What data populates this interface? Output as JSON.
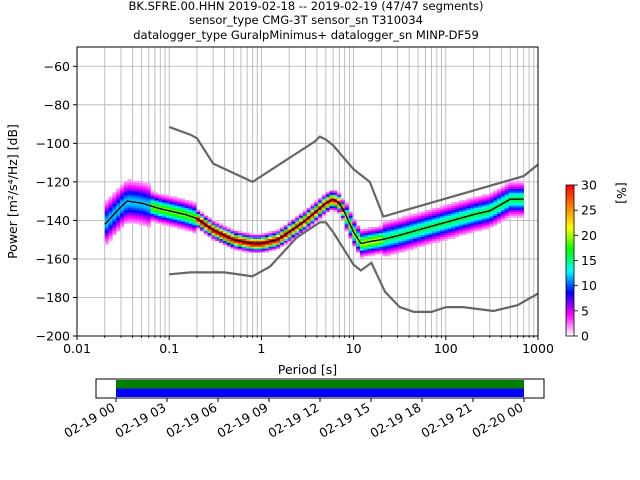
{
  "title_lines": [
    "BK.SFRE.00.HHN   2019-02-18 -- 2019-02-19  (47/47 segments)",
    "sensor_type CMG-3T sensor_sn T310034",
    "datalogger_type GuralpMinimus+ datalogger_sn MINP-DF59"
  ],
  "chart_data": [
    {
      "type": "heatmap",
      "xlabel": "Period [s]",
      "ylabel": "Power [m²/s⁴/Hz] [dB]",
      "xscale": "log",
      "xlim": [
        0.01,
        1000
      ],
      "ylim": [
        -200,
        -50
      ],
      "xtick_labels": [
        "0.01",
        "0.1",
        "1",
        "10",
        "100",
        "1000"
      ],
      "xtick_values": [
        0.01,
        0.1,
        1,
        10,
        100,
        1000
      ],
      "ytick_values": [
        -60,
        -80,
        -100,
        -120,
        -140,
        -160,
        -180,
        -200
      ],
      "grid": true,
      "colorbar": {
        "label": "[%]",
        "range": [
          0,
          30
        ],
        "ticks": [
          0,
          5,
          10,
          15,
          20,
          25,
          30
        ],
        "colors": [
          "#ffffff",
          "#ff00ff",
          "#0000ff",
          "#00ffff",
          "#00ff00",
          "#ffff00",
          "#ff8000",
          "#ff0000"
        ]
      },
      "mode_curve": {
        "period": [
          0.02,
          0.025,
          0.03,
          0.035,
          0.05,
          0.08,
          0.1,
          0.15,
          0.2,
          0.3,
          0.5,
          0.8,
          1.0,
          1.5,
          2,
          3,
          4,
          5,
          6,
          7,
          8,
          10,
          12,
          15,
          20,
          30,
          50,
          100,
          200,
          300,
          500,
          700
        ],
        "power": [
          -142,
          -137,
          -133,
          -130,
          -131,
          -134,
          -135,
          -137,
          -139,
          -145,
          -150,
          -152,
          -152,
          -150,
          -146,
          -140,
          -135,
          -131,
          -129,
          -131,
          -136,
          -146,
          -152,
          -151,
          -150,
          -148,
          -145,
          -141,
          -137,
          -135,
          -129,
          -129
        ]
      },
      "noise_models": [
        {
          "name": "",
          "period": [
            0.1,
            0.17,
            0.2,
            0.3,
            0.8,
            3.8,
            4.3,
            5.0,
            6.0,
            10,
            15,
            21,
            700,
            1000
          ],
          "power": [
            -91.5,
            -95.5,
            -97.4,
            -110.5,
            -120,
            -99,
            -96.5,
            -98,
            -101,
            -113.5,
            -120,
            -138,
            -117,
            -111
          ]
        },
        {
          "name": "",
          "period": [
            0.1,
            0.17,
            0.4,
            0.8,
            1.24,
            2.4,
            4.3,
            5.0,
            6.0,
            10,
            12,
            15.6,
            21.9,
            31.6,
            45,
            70,
            101,
            154,
            328,
            600,
            1000
          ],
          "power": [
            -168,
            -167,
            -167,
            -169,
            -164,
            -149,
            -141,
            -141,
            -146,
            -163,
            -166,
            -162,
            -177,
            -185,
            -187.5,
            -187.5,
            -185,
            -185,
            -187,
            -184,
            -178
          ]
        }
      ]
    },
    {
      "type": "timeline",
      "xtick_labels": [
        "02-19 00",
        "02-19 03",
        "02-19 06",
        "02-19 09",
        "02-19 12",
        "02-19 15",
        "02-19 18",
        "02-19 21",
        "02-20 00"
      ],
      "bars": [
        {
          "color": "#008000"
        },
        {
          "color": "#0000ff"
        }
      ]
    }
  ]
}
